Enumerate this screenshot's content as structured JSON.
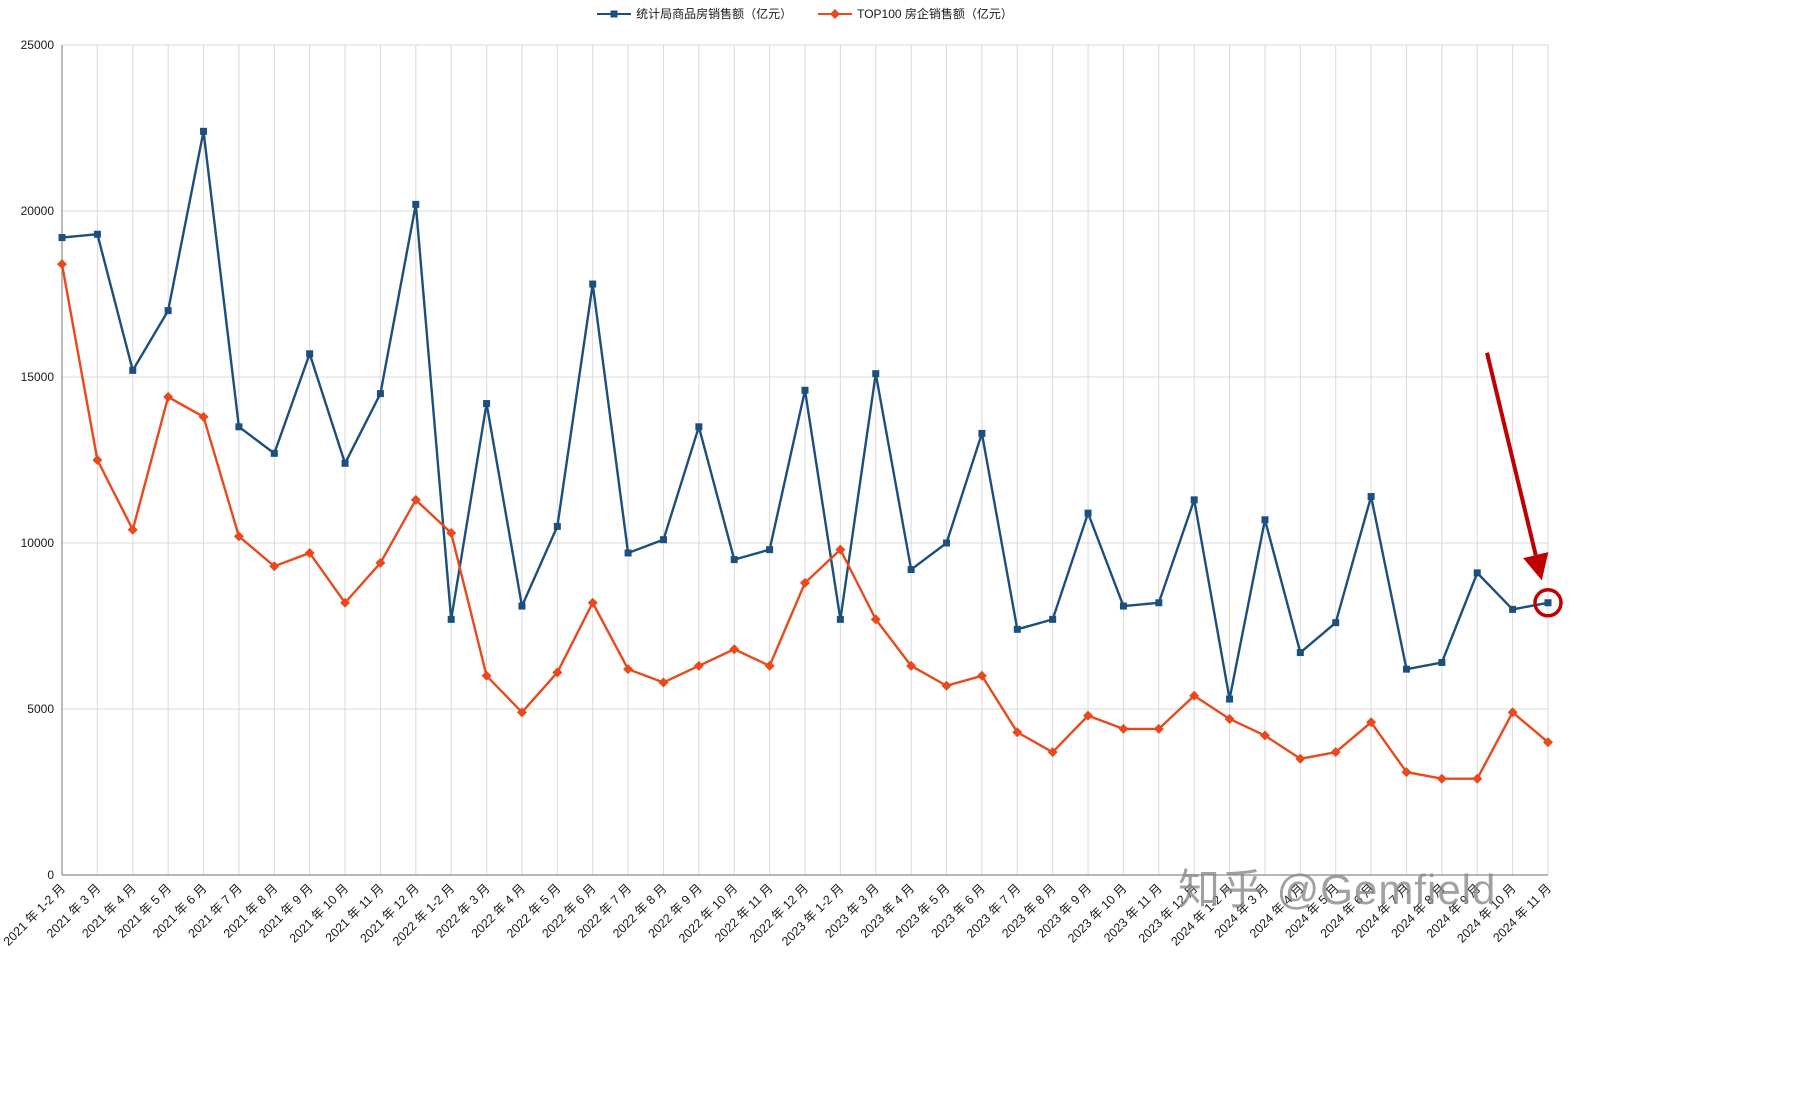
{
  "watermark": "知乎 @Gemfield",
  "chart_data": {
    "type": "line",
    "title": "",
    "xlabel": "",
    "ylabel": "",
    "ylim": [
      0,
      25000
    ],
    "ytick_interval": 5000,
    "ytick_labels": [
      "0",
      "5000",
      "10000",
      "15000",
      "20000",
      "25000"
    ],
    "grid": true,
    "legend_position": "top-center",
    "categories": [
      "2021 年 1-2 月",
      "2021 年 3 月",
      "2021 年 4 月",
      "2021 年 5 月",
      "2021 年 6 月",
      "2021 年 7 月",
      "2021 年 8 月",
      "2021 年 9 月",
      "2021 年 10 月",
      "2021 年 11 月",
      "2021 年 12 月",
      "2022 年 1-2 月",
      "2022 年 3 月",
      "2022 年 4 月",
      "2022 年 5 月",
      "2022 年 6 月",
      "2022 年 7 月",
      "2022 年 8 月",
      "2022 年 9 月",
      "2022 年 10 月",
      "2022 年 11 月",
      "2022 年 12 月",
      "2023 年 1-2 月",
      "2023 年 3 月",
      "2023 年 4 月",
      "2023 年 5 月",
      "2023 年 6 月",
      "2023 年 7 月",
      "2023 年 8 月",
      "2023 年 9 月",
      "2023 年 10 月",
      "2023 年 11 月",
      "2023 年 12 月",
      "2024 年 1-2 月",
      "2024 年 3 月",
      "2024 年 4 月",
      "2024 年 5 月",
      "2024 年 6 月",
      "2024 年 7 月",
      "2024 年 8 月",
      "2024 年 9 月",
      "2024 年 10 月",
      "2024 年 11 月"
    ],
    "series": [
      {
        "name": "统计局商品房销售额（亿元）",
        "color": "#1c4f7c",
        "marker": "square",
        "values": [
          19200,
          19300,
          15200,
          17000,
          22400,
          13500,
          12700,
          15700,
          12400,
          14500,
          20200,
          7700,
          14200,
          8100,
          10500,
          17800,
          9700,
          10100,
          13500,
          9500,
          9800,
          14600,
          7700,
          15100,
          9200,
          10000,
          13300,
          7400,
          7700,
          10900,
          8100,
          8200,
          11300,
          5300,
          10700,
          6700,
          7600,
          11400,
          6200,
          6400,
          9100,
          8000,
          8200
        ]
      },
      {
        "name": "TOP100 房企销售额（亿元）",
        "color": "#e8491d",
        "marker": "diamond",
        "values": [
          18400,
          12500,
          10400,
          14400,
          13800,
          10200,
          9300,
          9700,
          8200,
          9400,
          11300,
          10300,
          6000,
          4900,
          6100,
          8200,
          6200,
          5800,
          6300,
          6800,
          6300,
          8800,
          9800,
          7700,
          6300,
          5700,
          6000,
          4300,
          3700,
          4800,
          4400,
          4400,
          5400,
          4700,
          4200,
          3500,
          3700,
          4600,
          3100,
          2900,
          2900,
          4900,
          4000
        ]
      }
    ],
    "annotation": {
      "shape": "arrow-and-circle",
      "color": "#c00000",
      "target_series": "统计局商品房销售额（亿元）",
      "target_category": "2024 年 11 月"
    }
  }
}
